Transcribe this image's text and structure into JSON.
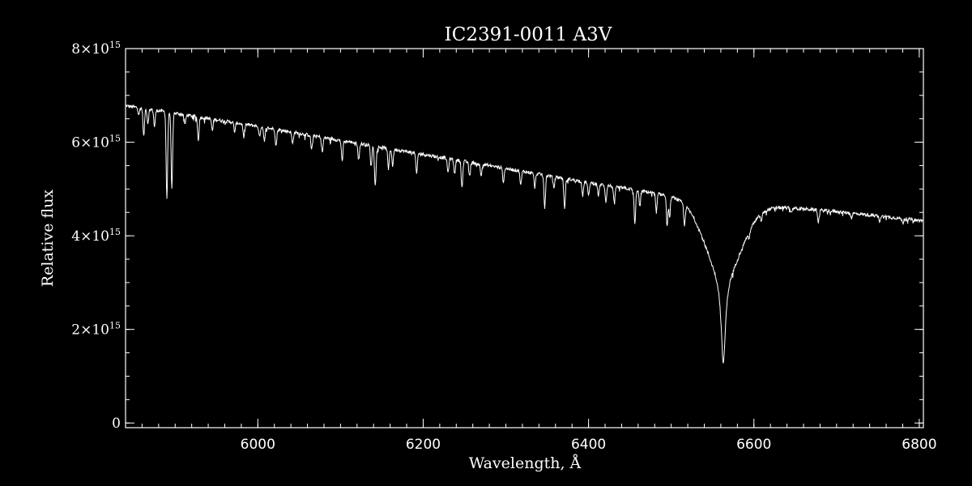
{
  "chart_data": {
    "type": "line",
    "title": "IC2391-0011   A3V",
    "xlabel": "Wavelength, Å",
    "ylabel": "Relative flux",
    "xlim": [
      5840,
      6805
    ],
    "ylim": [
      -100000000000000.0,
      8000000000000000.0
    ],
    "grid": false,
    "legend": "none",
    "line_color": "#ffffff",
    "background_color": "#000000",
    "x_ticks": [
      {
        "value": 6000,
        "label": "6000"
      },
      {
        "value": 6200,
        "label": "6200"
      },
      {
        "value": 6400,
        "label": "6400"
      },
      {
        "value": 6600,
        "label": "6600"
      },
      {
        "value": 6800,
        "label": "6800"
      }
    ],
    "x_minor_step": 20,
    "y_ticks": [
      {
        "value": 0,
        "mantissa": "0",
        "exponent": ""
      },
      {
        "value": 2000000000000000.0,
        "mantissa": "2×10",
        "exponent": "15"
      },
      {
        "value": 4000000000000000.0,
        "mantissa": "4×10",
        "exponent": "15"
      },
      {
        "value": 6000000000000000.0,
        "mantissa": "6×10",
        "exponent": "15"
      },
      {
        "value": 8000000000000000.0,
        "mantissa": "8×10",
        "exponent": "15"
      }
    ],
    "y_minor_step": 500000000000000.0,
    "continuum": [
      [
        5840,
        6780000000000000.0
      ],
      [
        5900,
        6620000000000000.0
      ],
      [
        6000,
        6340000000000000.0
      ],
      [
        6100,
        6040000000000000.0
      ],
      [
        6200,
        5740000000000000.0
      ],
      [
        6300,
        5440000000000000.0
      ],
      [
        6400,
        5140000000000000.0
      ],
      [
        6500,
        4860000000000000.0
      ],
      [
        6540,
        4780000000000000.0
      ],
      [
        6600,
        4660000000000000.0
      ],
      [
        6700,
        4520000000000000.0
      ],
      [
        6805,
        4320000000000000.0
      ]
    ],
    "absorption_lines": [
      {
        "x": 5856,
        "depth": 130000000000000.0
      },
      {
        "x": 5862,
        "depth": 600000000000000.0
      },
      {
        "x": 5867,
        "depth": 300000000000000.0
      },
      {
        "x": 5875,
        "depth": 350000000000000.0
      },
      {
        "x": 5890,
        "depth": 1850000000000000.0
      },
      {
        "x": 5896,
        "depth": 1650000000000000.0
      },
      {
        "x": 5912,
        "depth": 200000000000000.0
      },
      {
        "x": 5928,
        "depth": 500000000000000.0
      },
      {
        "x": 5945,
        "depth": 250000000000000.0
      },
      {
        "x": 5972,
        "depth": 200000000000000.0
      },
      {
        "x": 5983,
        "depth": 280000000000000.0
      },
      {
        "x": 6002,
        "depth": 220000000000000.0
      },
      {
        "x": 6008,
        "depth": 300000000000000.0
      },
      {
        "x": 6022,
        "depth": 350000000000000.0
      },
      {
        "x": 6042,
        "depth": 250000000000000.0
      },
      {
        "x": 6065,
        "depth": 300000000000000.0
      },
      {
        "x": 6078,
        "depth": 320000000000000.0
      },
      {
        "x": 6102,
        "depth": 450000000000000.0
      },
      {
        "x": 6122,
        "depth": 350000000000000.0
      },
      {
        "x": 6137,
        "depth": 450000000000000.0
      },
      {
        "x": 6142,
        "depth": 850000000000000.0
      },
      {
        "x": 6158,
        "depth": 450000000000000.0
      },
      {
        "x": 6163,
        "depth": 350000000000000.0
      },
      {
        "x": 6192,
        "depth": 450000000000000.0
      },
      {
        "x": 6230,
        "depth": 300000000000000.0
      },
      {
        "x": 6238,
        "depth": 300000000000000.0
      },
      {
        "x": 6247,
        "depth": 550000000000000.0
      },
      {
        "x": 6256,
        "depth": 300000000000000.0
      },
      {
        "x": 6270,
        "depth": 250000000000000.0
      },
      {
        "x": 6297,
        "depth": 300000000000000.0
      },
      {
        "x": 6318,
        "depth": 300000000000000.0
      },
      {
        "x": 6335,
        "depth": 300000000000000.0
      },
      {
        "x": 6347,
        "depth": 700000000000000.0
      },
      {
        "x": 6358,
        "depth": 250000000000000.0
      },
      {
        "x": 6371,
        "depth": 650000000000000.0
      },
      {
        "x": 6393,
        "depth": 300000000000000.0
      },
      {
        "x": 6400,
        "depth": 300000000000000.0
      },
      {
        "x": 6412,
        "depth": 250000000000000.0
      },
      {
        "x": 6421,
        "depth": 350000000000000.0
      },
      {
        "x": 6431,
        "depth": 350000000000000.0
      },
      {
        "x": 6456,
        "depth": 750000000000000.0
      },
      {
        "x": 6462,
        "depth": 350000000000000.0
      },
      {
        "x": 6482,
        "depth": 400000000000000.0
      },
      {
        "x": 6495,
        "depth": 650000000000000.0
      },
      {
        "x": 6498,
        "depth": 450000000000000.0
      },
      {
        "x": 6516,
        "depth": 450000000000000.0
      },
      {
        "x": 6594,
        "depth": 150000000000000.0
      },
      {
        "x": 6609,
        "depth": 150000000000000.0
      },
      {
        "x": 6645,
        "depth": 100000000000000.0
      },
      {
        "x": 6678,
        "depth": 250000000000000.0
      },
      {
        "x": 6718,
        "depth": 100000000000000.0
      },
      {
        "x": 6752,
        "depth": 100000000000000.0
      },
      {
        "x": 6780,
        "depth": 100000000000000.0
      }
    ],
    "broad_line": {
      "x": 6563,
      "depth": 3450000000000000.0,
      "width": 22
    }
  }
}
